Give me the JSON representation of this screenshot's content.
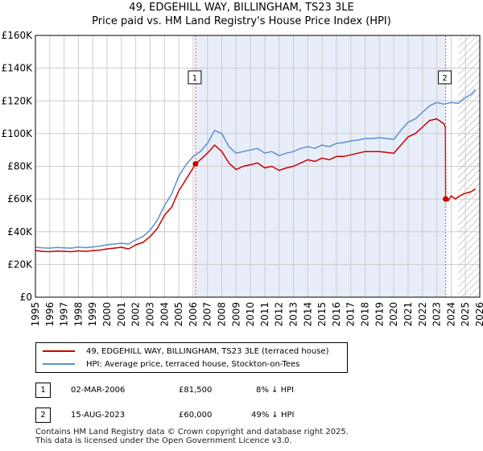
{
  "title": {
    "line1": "49, EDGEHILL WAY, BILLINGHAM, TS23 3LE",
    "line2": "Price paid vs. HM Land Registry's House Price Index (HPI)"
  },
  "colors": {
    "price_line": "#cc0000",
    "hpi_line": "#5b8fd0",
    "shade": "#e8eef9",
    "marker_line": "#e05050",
    "grid": "#cccccc"
  },
  "chart_data": {
    "type": "line",
    "x_range": [
      1995,
      2026
    ],
    "ylim": [
      0,
      160000
    ],
    "y_ticks": [
      0,
      20000,
      40000,
      60000,
      80000,
      100000,
      120000,
      140000,
      160000
    ],
    "y_tick_labels": [
      "£0",
      "£20K",
      "£40K",
      "£60K",
      "£80K",
      "£100K",
      "£120K",
      "£140K",
      "£160K"
    ],
    "x_ticks": [
      1995,
      1996,
      1997,
      1998,
      1999,
      2000,
      2001,
      2002,
      2003,
      2004,
      2005,
      2006,
      2007,
      2008,
      2009,
      2010,
      2011,
      2012,
      2013,
      2014,
      2015,
      2016,
      2017,
      2018,
      2019,
      2020,
      2021,
      2022,
      2023,
      2024,
      2025,
      2026
    ],
    "shaded_range": [
      2006.17,
      2023.62
    ],
    "future_hatch_start": 2024.5,
    "grid": true,
    "series": [
      {
        "name": "49, EDGEHILL WAY, BILLINGHAM, TS23 3LE (terraced house)",
        "color": "#cc0000",
        "points": [
          [
            1995.0,
            28500
          ],
          [
            1995.5,
            28000
          ],
          [
            1996.0,
            27800
          ],
          [
            1996.5,
            28200
          ],
          [
            1997.0,
            28000
          ],
          [
            1997.5,
            27800
          ],
          [
            1998.0,
            28300
          ],
          [
            1998.5,
            28000
          ],
          [
            1999.0,
            28400
          ],
          [
            1999.5,
            28800
          ],
          [
            2000.0,
            29500
          ],
          [
            2000.5,
            30000
          ],
          [
            2001.0,
            30500
          ],
          [
            2001.5,
            29500
          ],
          [
            2002.0,
            32000
          ],
          [
            2002.5,
            33500
          ],
          [
            2003.0,
            37000
          ],
          [
            2003.5,
            42000
          ],
          [
            2004.0,
            50000
          ],
          [
            2004.5,
            55000
          ],
          [
            2005.0,
            65000
          ],
          [
            2005.5,
            72000
          ],
          [
            2006.0,
            79000
          ],
          [
            2006.17,
            81500
          ],
          [
            2006.5,
            84000
          ],
          [
            2007.0,
            88000
          ],
          [
            2007.5,
            93000
          ],
          [
            2008.0,
            89000
          ],
          [
            2008.5,
            82000
          ],
          [
            2009.0,
            78000
          ],
          [
            2009.5,
            80000
          ],
          [
            2010.0,
            81000
          ],
          [
            2010.5,
            82000
          ],
          [
            2011.0,
            79000
          ],
          [
            2011.5,
            80000
          ],
          [
            2012.0,
            77500
          ],
          [
            2012.5,
            79000
          ],
          [
            2013.0,
            80000
          ],
          [
            2013.5,
            82000
          ],
          [
            2014.0,
            84000
          ],
          [
            2014.5,
            83000
          ],
          [
            2015.0,
            85000
          ],
          [
            2015.5,
            84000
          ],
          [
            2016.0,
            86000
          ],
          [
            2016.5,
            86000
          ],
          [
            2017.0,
            87000
          ],
          [
            2017.5,
            88000
          ],
          [
            2018.0,
            89000
          ],
          [
            2018.5,
            89000
          ],
          [
            2019.0,
            89000
          ],
          [
            2019.5,
            88500
          ],
          [
            2020.0,
            88000
          ],
          [
            2020.5,
            93000
          ],
          [
            2021.0,
            98000
          ],
          [
            2021.5,
            100000
          ],
          [
            2022.0,
            104000
          ],
          [
            2022.5,
            108000
          ],
          [
            2023.0,
            109000
          ],
          [
            2023.5,
            106000
          ],
          [
            2023.6,
            104000
          ],
          [
            2023.62,
            60000
          ],
          [
            2023.8,
            59000
          ],
          [
            2024.0,
            62000
          ],
          [
            2024.3,
            60000
          ],
          [
            2024.6,
            62000
          ],
          [
            2025.0,
            63500
          ],
          [
            2025.4,
            64500
          ],
          [
            2025.7,
            66000
          ]
        ],
        "sales": [
          {
            "label": "1",
            "x": 2006.17,
            "y": 81500
          },
          {
            "label": "2",
            "x": 2023.62,
            "y": 60000
          }
        ]
      },
      {
        "name": "HPI: Average price, terraced house, Stockton-on-Tees",
        "color": "#5b8fd0",
        "points": [
          [
            1995.0,
            30500
          ],
          [
            1995.5,
            30200
          ],
          [
            1996.0,
            30000
          ],
          [
            1996.5,
            30400
          ],
          [
            1997.0,
            30200
          ],
          [
            1997.5,
            30000
          ],
          [
            1998.0,
            30600
          ],
          [
            1998.5,
            30300
          ],
          [
            1999.0,
            30700
          ],
          [
            1999.5,
            31200
          ],
          [
            2000.0,
            32000
          ],
          [
            2000.5,
            32500
          ],
          [
            2001.0,
            33000
          ],
          [
            2001.5,
            32500
          ],
          [
            2002.0,
            35000
          ],
          [
            2002.5,
            37000
          ],
          [
            2003.0,
            41000
          ],
          [
            2003.5,
            47000
          ],
          [
            2004.0,
            56000
          ],
          [
            2004.5,
            63000
          ],
          [
            2005.0,
            74000
          ],
          [
            2005.5,
            81000
          ],
          [
            2006.0,
            86000
          ],
          [
            2006.5,
            89000
          ],
          [
            2007.0,
            94000
          ],
          [
            2007.5,
            102000
          ],
          [
            2008.0,
            100000
          ],
          [
            2008.5,
            92000
          ],
          [
            2009.0,
            88000
          ],
          [
            2009.5,
            89000
          ],
          [
            2010.0,
            90000
          ],
          [
            2010.5,
            91000
          ],
          [
            2011.0,
            88000
          ],
          [
            2011.5,
            89000
          ],
          [
            2012.0,
            86500
          ],
          [
            2012.5,
            88000
          ],
          [
            2013.0,
            89000
          ],
          [
            2013.5,
            91000
          ],
          [
            2014.0,
            92000
          ],
          [
            2014.5,
            91000
          ],
          [
            2015.0,
            93000
          ],
          [
            2015.5,
            92000
          ],
          [
            2016.0,
            94000
          ],
          [
            2016.5,
            94500
          ],
          [
            2017.0,
            95500
          ],
          [
            2017.5,
            96000
          ],
          [
            2018.0,
            97000
          ],
          [
            2018.5,
            97000
          ],
          [
            2019.0,
            97500
          ],
          [
            2019.5,
            97000
          ],
          [
            2020.0,
            96500
          ],
          [
            2020.5,
            102000
          ],
          [
            2021.0,
            107000
          ],
          [
            2021.5,
            109000
          ],
          [
            2022.0,
            113000
          ],
          [
            2022.5,
            117000
          ],
          [
            2023.0,
            119000
          ],
          [
            2023.5,
            118000
          ],
          [
            2024.0,
            119000
          ],
          [
            2024.5,
            118500
          ],
          [
            2025.0,
            122000
          ],
          [
            2025.4,
            124000
          ],
          [
            2025.7,
            127000
          ]
        ]
      }
    ]
  },
  "legend": {
    "items": [
      {
        "label": "49, EDGEHILL WAY, BILLINGHAM, TS23 3LE (terraced house)",
        "color": "#cc0000"
      },
      {
        "label": "HPI: Average price, terraced house, Stockton-on-Tees",
        "color": "#5b8fd0"
      }
    ]
  },
  "transactions": [
    {
      "num": "1",
      "date": "02-MAR-2006",
      "price": "£81,500",
      "hpi": "8% ↓ HPI"
    },
    {
      "num": "2",
      "date": "15-AUG-2023",
      "price": "£60,000",
      "hpi": "49% ↓ HPI"
    }
  ],
  "footer": {
    "line1": "Contains HM Land Registry data © Crown copyright and database right 2025.",
    "line2": "This data is licensed under the Open Government Licence v3.0."
  }
}
